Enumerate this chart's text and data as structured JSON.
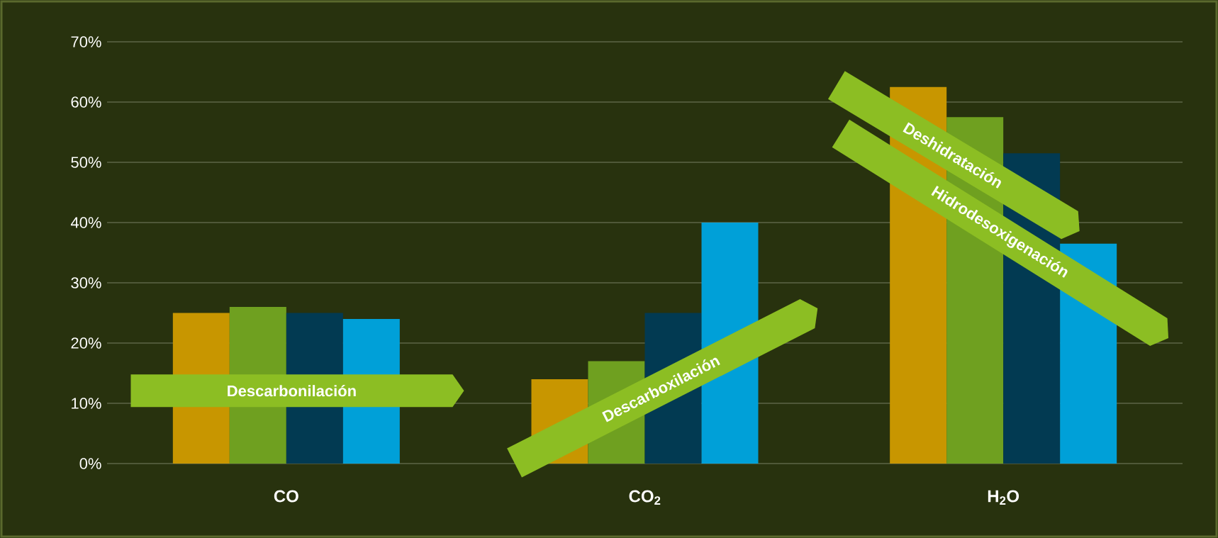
{
  "chart_data": {
    "type": "bar",
    "categories": [
      "CO",
      "CO$_{2}$",
      "H$_{2}$O"
    ],
    "series": [
      {
        "color": "#c89600",
        "values": [
          25,
          14,
          62.5
        ]
      },
      {
        "color": "#6fa020",
        "values": [
          26,
          17,
          57.5
        ]
      },
      {
        "color": "#023a52",
        "values": [
          25,
          25,
          51.5
        ]
      },
      {
        "color": "#00a0d8",
        "values": [
          24,
          40,
          36.5
        ]
      }
    ],
    "ylim": [
      0,
      70
    ],
    "yticks": [
      {
        "value": 0,
        "label": "0%"
      },
      {
        "value": 10,
        "label": "10%"
      },
      {
        "value": 20,
        "label": "20%"
      },
      {
        "value": 30,
        "label": "30%"
      },
      {
        "value": 40,
        "label": "40%"
      },
      {
        "value": 50,
        "label": "50%"
      },
      {
        "value": 60,
        "label": "60%"
      },
      {
        "value": 70,
        "label": "70%"
      }
    ],
    "grid": "y",
    "annotations": [
      "Descarbonilación",
      "Descarboxilación",
      "Deshidratación",
      "Hidrodesoxigenación"
    ]
  }
}
